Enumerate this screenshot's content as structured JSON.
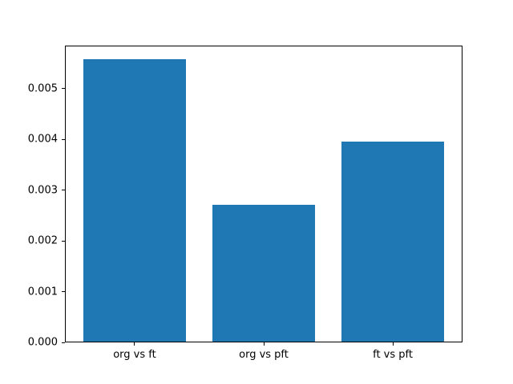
{
  "figure": {
    "background": "#ffffff"
  },
  "chart_data": {
    "type": "bar",
    "title": "",
    "xlabel": "",
    "ylabel": "",
    "categories": [
      "org vs ft",
      "org vs pft",
      "ft vs pft"
    ],
    "values": [
      0.00558,
      0.00271,
      0.00396
    ],
    "bar_color": "#1f77b4",
    "bar_width": 0.8,
    "xlim": [
      -0.54,
      2.54
    ],
    "ylim": [
      0,
      0.00585
    ],
    "yticks": [
      {
        "value": 0.0,
        "label": "0.000"
      },
      {
        "value": 0.001,
        "label": "0.001"
      },
      {
        "value": 0.002,
        "label": "0.002"
      },
      {
        "value": 0.003,
        "label": "0.003"
      },
      {
        "value": 0.004,
        "label": "0.004"
      },
      {
        "value": 0.005,
        "label": "0.005"
      }
    ],
    "grid": false,
    "legend": null
  }
}
